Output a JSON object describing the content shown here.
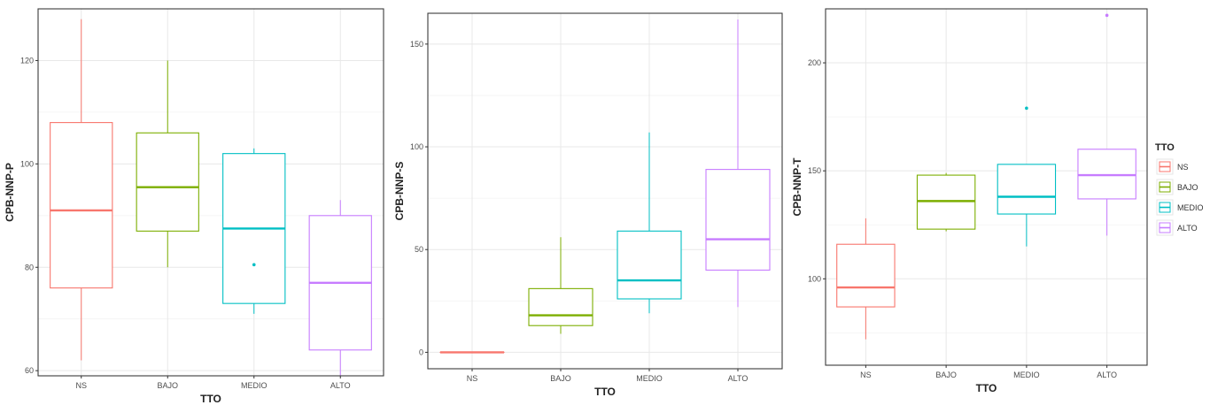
{
  "chart_data": [
    {
      "type": "boxplot",
      "xlabel": "TTO",
      "ylabel": "CPB-NNP-P",
      "categories": [
        "NS",
        "BAJO",
        "MEDIO",
        "ALTO"
      ],
      "ylim": [
        59,
        130
      ],
      "yticks": [
        60,
        80,
        100,
        120
      ],
      "boxes": [
        {
          "category": "NS",
          "min": 62,
          "q1": 76,
          "median": 91,
          "q3": 108,
          "max": 128,
          "outliers": []
        },
        {
          "category": "BAJO",
          "min": 80,
          "q1": 87,
          "median": 95.5,
          "q3": 106,
          "max": 120,
          "outliers": []
        },
        {
          "category": "MEDIO",
          "min": 71,
          "q1": 73,
          "median": 87.5,
          "q3": 102,
          "max": 103,
          "outliers": [
            80.5
          ]
        },
        {
          "category": "ALTO",
          "min": 59,
          "q1": 64,
          "median": 77,
          "q3": 90,
          "max": 93,
          "outliers": []
        }
      ]
    },
    {
      "type": "boxplot",
      "xlabel": "TTO",
      "ylabel": "CPB-NNP-S",
      "categories": [
        "NS",
        "BAJO",
        "MEDIO",
        "ALTO"
      ],
      "ylim": [
        -8,
        165
      ],
      "yticks": [
        0,
        50,
        100,
        150
      ],
      "boxes": [
        {
          "category": "NS",
          "min": 0,
          "q1": 0,
          "median": 0,
          "q3": 0,
          "max": 0,
          "outliers": []
        },
        {
          "category": "BAJO",
          "min": 9,
          "q1": 13,
          "median": 18,
          "q3": 31,
          "max": 56,
          "outliers": []
        },
        {
          "category": "MEDIO",
          "min": 19,
          "q1": 26,
          "median": 35,
          "q3": 59,
          "max": 107,
          "outliers": []
        },
        {
          "category": "ALTO",
          "min": 22,
          "q1": 40,
          "median": 55,
          "q3": 89,
          "max": 162,
          "outliers": []
        }
      ]
    },
    {
      "type": "boxplot",
      "xlabel": "TTO",
      "ylabel": "CPB-NNP-T",
      "categories": [
        "NS",
        "BAJO",
        "MEDIO",
        "ALTO"
      ],
      "ylim": [
        60,
        225
      ],
      "yticks": [
        100,
        150,
        200
      ],
      "boxes": [
        {
          "category": "NS",
          "min": 72,
          "q1": 87,
          "median": 96,
          "q3": 116,
          "max": 128,
          "outliers": []
        },
        {
          "category": "BAJO",
          "min": 122,
          "q1": 123,
          "median": 136,
          "q3": 148,
          "max": 149,
          "outliers": []
        },
        {
          "category": "MEDIO",
          "min": 115,
          "q1": 130,
          "median": 138,
          "q3": 153,
          "max": 153,
          "outliers": [
            179
          ]
        },
        {
          "category": "ALTO",
          "min": 120,
          "q1": 137,
          "median": 148,
          "q3": 160,
          "max": 160,
          "outliers": [
            222
          ]
        }
      ]
    }
  ],
  "legend": {
    "title": "TTO",
    "placement": "right",
    "items": [
      {
        "label": "NS",
        "color": "#f8766d"
      },
      {
        "label": "BAJO",
        "color": "#7cae00"
      },
      {
        "label": "MEDIO",
        "color": "#00bfc4"
      },
      {
        "label": "ALTO",
        "color": "#c77cff"
      }
    ]
  }
}
